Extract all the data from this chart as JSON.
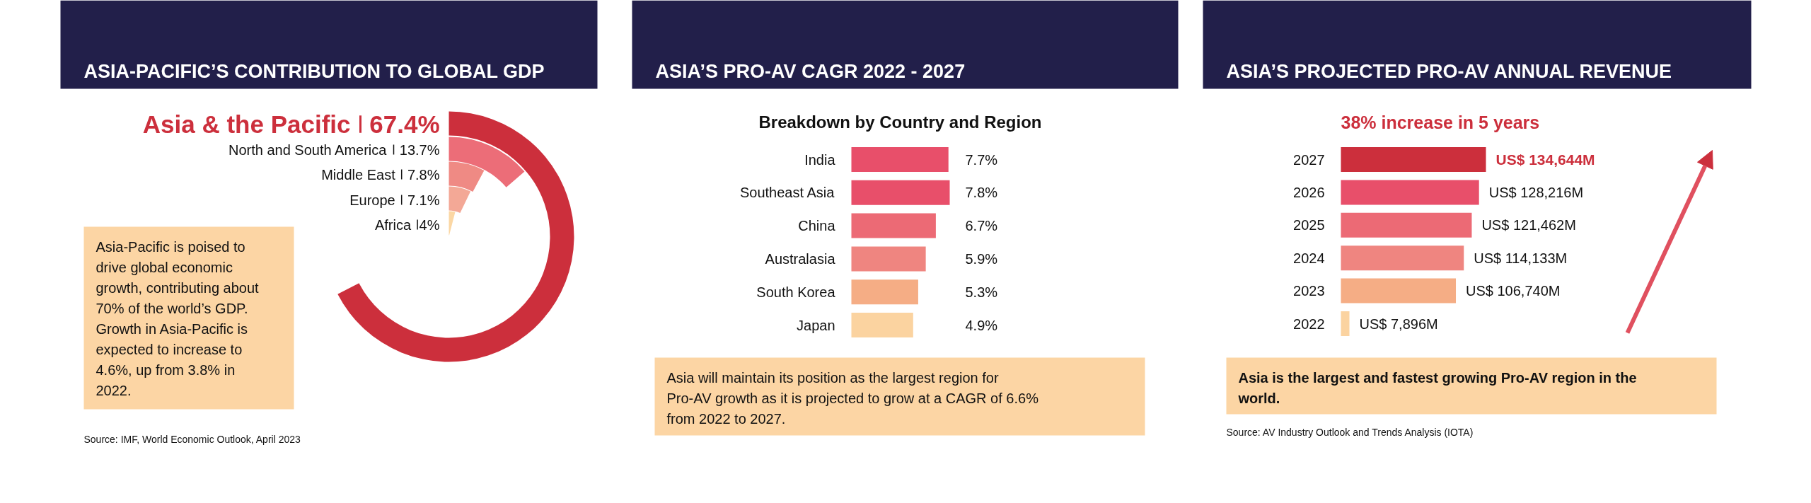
{
  "chart_data": [
    {
      "type": "other",
      "title": "ASIA-PACIFIC’S CONTRIBUTION TO GLOBAL GDP",
      "categories": [
        "Asia & the Pacific",
        "North and South America",
        "Middle East",
        "Europe",
        "Africa"
      ],
      "values": [
        67.4,
        13.7,
        7.8,
        7.1,
        4
      ],
      "value_labels": [
        "67.4%",
        "13.7%",
        "7.8%",
        "7.1%",
        "4%"
      ],
      "colors": [
        "#cc2f3c",
        "#ec6d78",
        "#ef8a84",
        "#f3a896",
        "#fbd7a4"
      ],
      "annotations": [
        "Asia-Pacific is poised to drive global economic growth, contributing about 70% of the world’s GDP. Growth in Asia-Pacific is expected to increase to 4.6%, up from 3.8% in 2022.",
        "Source: IMF, World Economic Outlook, April 2023"
      ]
    },
    {
      "type": "bar",
      "orientation": "horizontal",
      "title": "ASIA’S PRO-AV CAGR 2022 - 2027",
      "subtitle": "Breakdown by Country and Region",
      "categories": [
        "India",
        "Southeast Asia",
        "China",
        "Australasia",
        "South Korea",
        "Japan"
      ],
      "values": [
        7.7,
        7.8,
        6.7,
        5.9,
        5.3,
        4.9
      ],
      "value_labels": [
        "7.7%",
        "7.8%",
        "6.7%",
        "5.9%",
        "5.3%",
        "4.9%"
      ],
      "colors": [
        "#e84f6a",
        "#e84f6a",
        "#ec6a75",
        "#ef8580",
        "#f5ad85",
        "#fbd3a0"
      ],
      "annotations": [
        "Asia will maintain its position as the largest region for Pro-AV growth as it is projected to grow at a CAGR of 6.6% from 2022 to 2027."
      ]
    },
    {
      "type": "bar",
      "orientation": "horizontal",
      "title": "ASIA’S PROJECTED PRO-AV ANNUAL REVENUE",
      "categories": [
        "2027",
        "2026",
        "2025",
        "2024",
        "2023",
        "2022"
      ],
      "values": [
        134644000000,
        128216000000,
        121462000000,
        114133000000,
        106740000000,
        7896000000
      ],
      "value_labels": [
        "US$ 134,644M",
        "US$ 128,216M",
        "US$ 121,462M",
        "US$ 114,133M",
        "US$ 106,740M",
        "US$ 7,896M"
      ],
      "colors": [
        "#cc2f3c",
        "#e84f6a",
        "#ec6a75",
        "#ef8580",
        "#f5ad85",
        "#fbd3a0"
      ],
      "annotations": [
        "38% increase in 5 years",
        "Asia is the largest and fastest growing Pro-AV region in the world.",
        "Source: AV Industry Outlook and Trends Analysis (IOTA)"
      ]
    }
  ]
}
